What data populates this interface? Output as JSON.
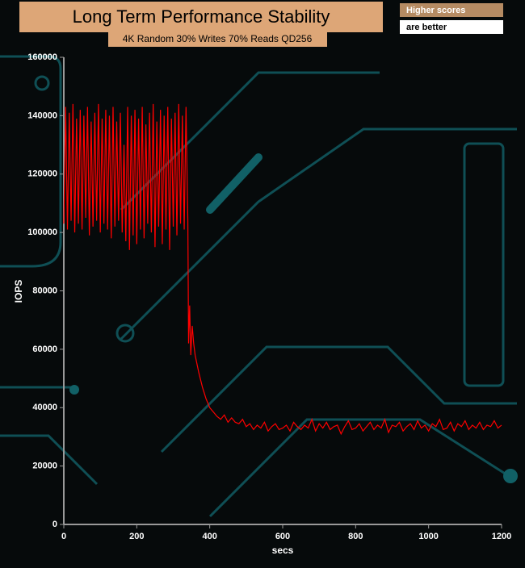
{
  "chart_data": {
    "type": "line",
    "title": "Long Term Performance Stability",
    "subtitle": "4K Random 30% Writes 70% Reads QD256",
    "annotations": [
      "Higher scores",
      "are better"
    ],
    "xlabel": "secs",
    "ylabel": "IOPS",
    "xlim": [
      0,
      1200
    ],
    "xticks": [
      0,
      200,
      400,
      600,
      800,
      1000,
      1200
    ],
    "ylim": [
      0,
      160000
    ],
    "yticks": [
      0,
      20000,
      40000,
      60000,
      80000,
      100000,
      120000,
      140000,
      160000
    ],
    "color": "#ff0000",
    "x": [
      0,
      5,
      10,
      15,
      20,
      25,
      30,
      35,
      40,
      45,
      50,
      55,
      60,
      65,
      70,
      75,
      80,
      85,
      90,
      95,
      100,
      105,
      110,
      115,
      120,
      125,
      130,
      135,
      140,
      145,
      150,
      155,
      160,
      165,
      170,
      175,
      180,
      185,
      190,
      195,
      200,
      205,
      210,
      215,
      220,
      225,
      230,
      235,
      240,
      245,
      250,
      255,
      260,
      265,
      270,
      275,
      280,
      285,
      290,
      295,
      300,
      305,
      310,
      315,
      320,
      325,
      330,
      335,
      340,
      342,
      345,
      348,
      352,
      356,
      360,
      370,
      380,
      390,
      400,
      410,
      420,
      430,
      440,
      450,
      460,
      470,
      480,
      490,
      500,
      510,
      520,
      530,
      540,
      550,
      560,
      570,
      580,
      590,
      600,
      610,
      620,
      630,
      640,
      650,
      660,
      670,
      680,
      690,
      700,
      710,
      720,
      730,
      740,
      750,
      760,
      770,
      780,
      790,
      800,
      810,
      820,
      830,
      840,
      850,
      860,
      870,
      880,
      890,
      900,
      910,
      920,
      930,
      940,
      950,
      960,
      970,
      980,
      990,
      1000,
      1010,
      1020,
      1030,
      1040,
      1050,
      1060,
      1070,
      1080,
      1090,
      1100,
      1110,
      1120,
      1130,
      1140,
      1150,
      1160,
      1170,
      1180,
      1190,
      1200
    ],
    "values": [
      103000,
      143000,
      101000,
      141000,
      104000,
      144000,
      100000,
      139000,
      103000,
      142000,
      101000,
      140000,
      105000,
      143000,
      99000,
      138000,
      102000,
      141000,
      104000,
      144000,
      100000,
      139000,
      103000,
      142000,
      101000,
      140000,
      98000,
      143000,
      102000,
      138000,
      104000,
      141000,
      100000,
      130000,
      97000,
      143000,
      94000,
      140000,
      99000,
      142000,
      96000,
      139000,
      101000,
      143000,
      98000,
      137000,
      103000,
      141000,
      100000,
      144000,
      95000,
      138000,
      102000,
      142000,
      96000,
      140000,
      101000,
      143000,
      94000,
      139000,
      102000,
      141000,
      99000,
      144000,
      103000,
      140000,
      101000,
      143000,
      104000,
      62000,
      75000,
      58000,
      68000,
      62000,
      58000,
      52000,
      47000,
      43000,
      40000,
      38500,
      37000,
      36000,
      37500,
      35000,
      36500,
      35000,
      34500,
      36000,
      33500,
      34500,
      32500,
      34000,
      33000,
      35000,
      32000,
      33500,
      34500,
      32500,
      33000,
      34000,
      32000,
      35000,
      33500,
      32500,
      34000,
      33000,
      36000,
      32000,
      34500,
      33000,
      35000,
      32500,
      33500,
      34000,
      31000,
      33500,
      35500,
      32500,
      33000,
      34500,
      32000,
      33500,
      35000,
      32500,
      34000,
      33000,
      36000,
      31500,
      34000,
      33500,
      35000,
      32000,
      33500,
      34500,
      32500,
      35500,
      33000,
      34000,
      32000,
      34500,
      33500,
      36000,
      32500,
      33000,
      35000,
      32000,
      34500,
      33500,
      35500,
      32500,
      34000,
      33000,
      35000,
      32500,
      34000,
      33500,
      35500,
      33000,
      34000
    ],
    "grid": false
  }
}
